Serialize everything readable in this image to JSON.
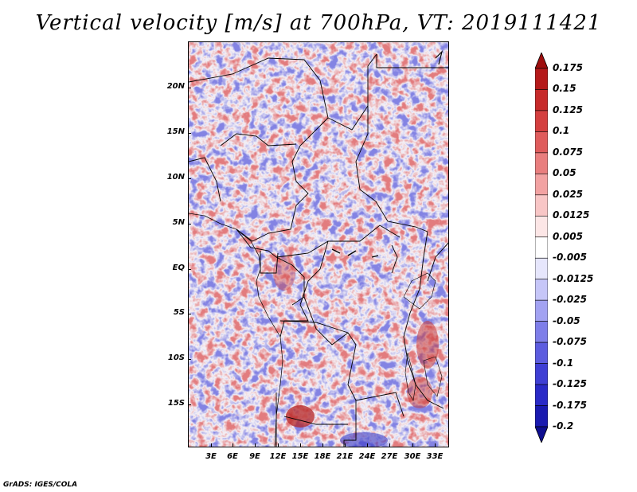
{
  "title": "Vertical velocity [m/s] at 700hPa, VT: 2019111421",
  "footer": "GrADS: IGES/COLA",
  "lat_labels": [
    "20N",
    "15N",
    "10N",
    "5N",
    "EQ",
    "5S",
    "10S",
    "15S"
  ],
  "lon_labels": [
    "3E",
    "6E",
    "9E",
    "12E",
    "15E",
    "18E",
    "21E",
    "24E",
    "27E",
    "30E",
    "33E"
  ],
  "colorbar": {
    "labels": [
      "0.175",
      "0.15",
      "0.125",
      "0.1",
      "0.075",
      "0.05",
      "0.025",
      "0.0125",
      "0.005",
      "-0.005",
      "-0.0125",
      "-0.025",
      "-0.05",
      "-0.075",
      "-0.1",
      "-0.125",
      "-0.175",
      "-0.2"
    ],
    "colors": [
      "#9e0e0e",
      "#b5191a",
      "#c72a2a",
      "#d43f3f",
      "#df5c5c",
      "#e97e7e",
      "#f2a2a2",
      "#f8c6c6",
      "#fce6e6",
      "#ffffff",
      "#e6e6fc",
      "#c6c6f8",
      "#a2a2f2",
      "#7e7ee9",
      "#5c5cdf",
      "#3f3fd4",
      "#2a2ac7",
      "#1a1ab0",
      "#0e0e90"
    ]
  }
}
